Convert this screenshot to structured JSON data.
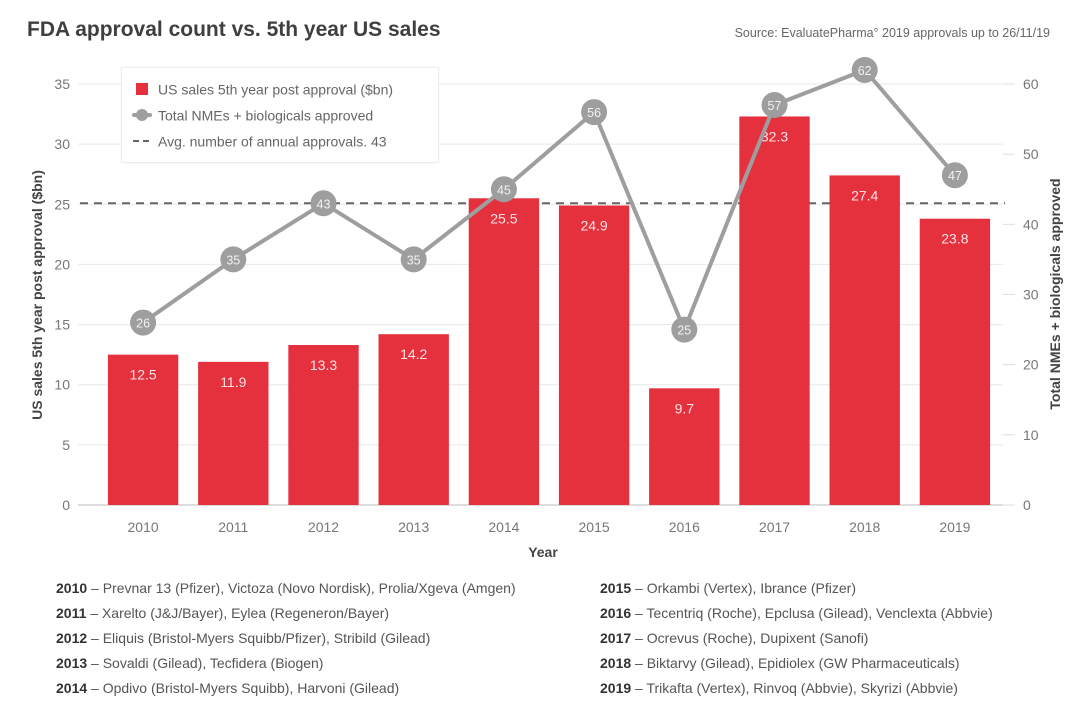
{
  "header": {
    "title": "FDA approval count vs. 5th year US sales",
    "source": "Source: EvaluatePharma° 2019 approvals up to 26/11/19"
  },
  "colors": {
    "bar": "#e5303d",
    "line": "#9e9e9e",
    "marker": "#9e9e9e",
    "avg_line": "#666666",
    "grid": "#e8e8e8"
  },
  "chart_data": {
    "type": "bar",
    "title": "FDA approval count vs. 5th year US sales",
    "xlabel": "Year",
    "ylabel": "US sales 5th year post approval ($bn)",
    "y2label": "Total NMEs + biologicals approved",
    "categories": [
      "2010",
      "2011",
      "2012",
      "2013",
      "2014",
      "2015",
      "2016",
      "2017",
      "2018",
      "2019"
    ],
    "ylim": [
      0,
      35
    ],
    "yticks": [
      0,
      5,
      10,
      15,
      20,
      25,
      30,
      35
    ],
    "y2lim": [
      0,
      60
    ],
    "y2ticks": [
      0,
      10,
      20,
      30,
      40,
      50,
      60
    ],
    "grid": true,
    "legend_position": "top-left",
    "series": [
      {
        "name": "US sales 5th year post approval ($bn)",
        "type": "bar",
        "axis": "left",
        "values": [
          12.5,
          11.9,
          13.3,
          14.2,
          25.5,
          24.9,
          9.7,
          32.3,
          27.4,
          23.8
        ],
        "labels": [
          "12.5",
          "11.9",
          "13.3",
          "14.2",
          "25.5",
          "24.9",
          "9.7",
          "32.3",
          "27.4",
          "23.8"
        ]
      },
      {
        "name": "Total NMEs + biologicals approved",
        "type": "line",
        "axis": "right",
        "values": [
          26,
          35,
          43,
          35,
          45,
          56,
          25,
          57,
          62,
          47
        ],
        "labels": [
          "26",
          "35",
          "43",
          "35",
          "45",
          "56",
          "25",
          "57",
          "62",
          "47"
        ]
      },
      {
        "name": "Avg. number of annual approvals. 43",
        "type": "hline",
        "axis": "right",
        "value": 43
      }
    ]
  },
  "legend": {
    "items": [
      {
        "label": "US sales 5th year post approval ($bn)",
        "symbol": "bar-swatch"
      },
      {
        "label": "Total NMEs + biologicals approved",
        "symbol": "line-marker"
      },
      {
        "label": "Avg. number of annual approvals. 43",
        "symbol": "dashed-line"
      }
    ]
  },
  "notes": {
    "left": [
      {
        "year": "2010",
        "text": " – Prevnar 13 (Pfizer), Victoza (Novo Nordisk), Prolia/Xgeva (Amgen)"
      },
      {
        "year": "2011",
        "text": " – Xarelto (J&J/Bayer), Eylea (Regeneron/Bayer)"
      },
      {
        "year": "2012",
        "text": " – Eliquis (Bristol-Myers Squibb/Pfizer), Stribild (Gilead)"
      },
      {
        "year": "2013",
        "text": " – Sovaldi (Gilead), Tecfidera (Biogen)"
      },
      {
        "year": "2014",
        "text": " – Opdivo (Bristol-Myers Squibb), Harvoni (Gilead)"
      }
    ],
    "right": [
      {
        "year": "2015",
        "text": " – Orkambi (Vertex), Ibrance (Pfizer)"
      },
      {
        "year": "2016",
        "text": " – Tecentriq (Roche), Epclusa (Gilead), Venclexta (Abbvie)"
      },
      {
        "year": "2017",
        "text": " – Ocrevus (Roche), Dupixent (Sanofi)"
      },
      {
        "year": "2018",
        "text": " – Biktarvy (Gilead), Epidiolex (GW Pharmaceuticals)"
      },
      {
        "year": "2019",
        "text": " – Trikafta (Vertex), Rinvoq (Abbvie), Skyrizi (Abbvie)"
      }
    ]
  }
}
